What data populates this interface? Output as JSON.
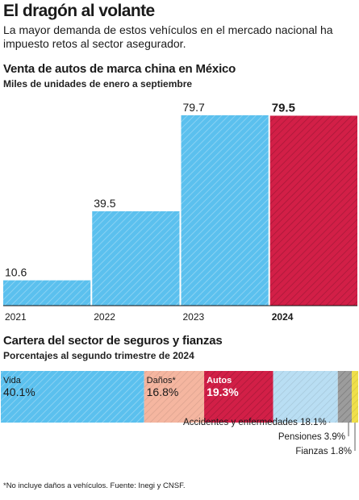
{
  "header": {
    "title": "El dragón al volante",
    "lede": "La mayor demanda de estos vehículos en el mercado nacional ha impuesto retos al sector asegurador."
  },
  "bar_section": {
    "title": "Venta de autos de marca china en México",
    "subtitle": "Miles de unidades de enero a septiembre"
  },
  "segment_section": {
    "title": "Cartera del sector de seguros y fianzas",
    "subtitle": "Porcentajes al segundo trimestre de 2024"
  },
  "footnote": "*No incluye daños a vehículos. Fuente: Inegi y CNSF.",
  "colors": {
    "blue": "#5bc0ee",
    "red": "#d21f47",
    "salmon": "#f5b6a0",
    "light_blue": "#b9def3",
    "gray": "#9c9c9c",
    "yellow": "#f0e04a"
  },
  "chart_data": [
    {
      "type": "bar",
      "title": "Venta de autos de marca china en México",
      "subtitle": "Miles de unidades de enero a septiembre",
      "categories": [
        "2021",
        "2022",
        "2023",
        "2024"
      ],
      "values": [
        10.6,
        39.5,
        79.7,
        79.5
      ],
      "value_labels": [
        "10.6",
        "39.5",
        "79.7",
        "79.5"
      ],
      "highlight": "2024",
      "colors": [
        "blue",
        "blue",
        "blue",
        "red"
      ],
      "ylim": [
        0,
        80
      ],
      "grid": false
    },
    {
      "type": "bar",
      "stacked": true,
      "orientation": "horizontal",
      "title": "Cartera del sector de seguros y fianzas",
      "subtitle": "Porcentajes al segundo trimestre de 2024",
      "segments": [
        {
          "label": "Vida",
          "value": 40.1,
          "display": "40.1%",
          "color": "blue"
        },
        {
          "label": "Daños*",
          "value": 16.8,
          "display": "16.8%",
          "color": "salmon"
        },
        {
          "label": "Autos",
          "value": 19.3,
          "display": "19.3%",
          "color": "red"
        },
        {
          "label": "Accidentes y enfermedades",
          "value": 18.1,
          "display": "18.1%",
          "color": "light_blue"
        },
        {
          "label": "Pensiones",
          "value": 3.9,
          "display": "3.9%",
          "color": "gray"
        },
        {
          "label": "Fianzas",
          "value": 1.8,
          "display": "1.8%",
          "color": "yellow"
        }
      ]
    }
  ]
}
